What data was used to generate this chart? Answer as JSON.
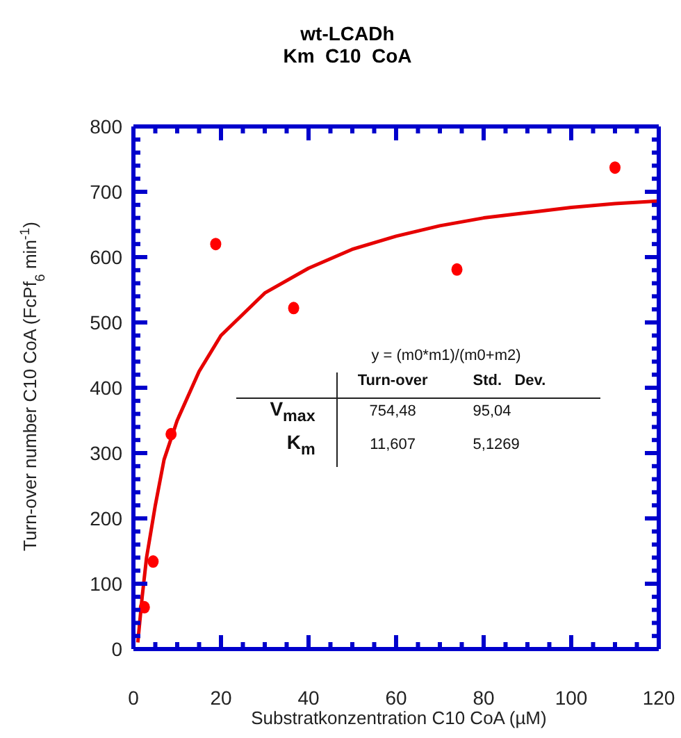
{
  "chart_data": {
    "type": "scatter",
    "title": "wt-LCADh",
    "subtitle": "Km  C10  CoA",
    "xlabel": "Substratkonzentration C10 CoA (µM)",
    "ylabel": "Turn-over number C10 CoA (FcPf$_{6}$  min$^{-1}$)",
    "xlim": [
      0,
      120
    ],
    "ylim": [
      0,
      800
    ],
    "xticks": [
      0,
      {
        "value": 5,
        "label": null
      },
      {
        "value": 10,
        "label": null
      },
      {
        "value": 15,
        "label": null
      },
      20,
      {
        "value": 25,
        "label": null
      },
      {
        "value": 30,
        "label": null
      },
      {
        "value": 35,
        "label": null
      },
      40,
      {
        "value": 45,
        "label": null
      },
      {
        "value": 50,
        "label": null
      },
      {
        "value": 55,
        "label": null
      },
      60,
      {
        "value": 65,
        "label": null
      },
      {
        "value": 70,
        "label": null
      },
      {
        "value": 75,
        "label": null
      },
      80,
      {
        "value": 85,
        "label": null
      },
      {
        "value": 90,
        "label": null
      },
      {
        "value": 95,
        "label": null
      },
      100,
      {
        "value": 105,
        "label": null
      },
      {
        "value": 110,
        "label": null
      },
      {
        "value": 115,
        "label": null
      },
      120
    ],
    "yticks": [
      0,
      {
        "value": 20,
        "label": null
      },
      {
        "value": 40,
        "label": null
      },
      {
        "value": 60,
        "label": null
      },
      {
        "value": 80,
        "label": null
      },
      100,
      {
        "value": 120,
        "label": null
      },
      {
        "value": 140,
        "label": null
      },
      {
        "value": 160,
        "label": null
      },
      {
        "value": 180,
        "label": null
      },
      200,
      {
        "value": 220,
        "label": null
      },
      {
        "value": 240,
        "label": null
      },
      {
        "value": 260,
        "label": null
      },
      {
        "value": 280,
        "label": null
      },
      300,
      {
        "value": 320,
        "label": null
      },
      {
        "value": 340,
        "label": null
      },
      {
        "value": 360,
        "label": null
      },
      {
        "value": 380,
        "label": null
      },
      400,
      {
        "value": 420,
        "label": null
      },
      {
        "value": 440,
        "label": null
      },
      {
        "value": 460,
        "label": null
      },
      {
        "value": 480,
        "label": null
      },
      500,
      {
        "value": 520,
        "label": null
      },
      {
        "value": 540,
        "label": null
      },
      {
        "value": 560,
        "label": null
      },
      {
        "value": 580,
        "label": null
      },
      600,
      {
        "value": 620,
        "label": null
      },
      {
        "value": 640,
        "label": null
      },
      {
        "value": 660,
        "label": null
      },
      {
        "value": 680,
        "label": null
      },
      700,
      {
        "value": 720,
        "label": null
      },
      {
        "value": 740,
        "label": null
      },
      {
        "value": 760,
        "label": null
      },
      {
        "value": 780,
        "label": null
      },
      800
    ],
    "series": [
      {
        "marker": "circle",
        "color": "#ff0000",
        "x": [
          2.5,
          4.5,
          8.6,
          18.8,
          36.6,
          73.9,
          110
        ],
        "values": [
          64,
          134,
          329,
          620,
          522,
          581,
          737
        ]
      },
      {
        "type": "line",
        "marker": "none",
        "line_style": "solid",
        "color": "#e60000",
        "x": [
          1,
          2,
          3,
          5,
          7,
          10,
          15,
          20,
          30,
          40,
          50,
          60,
          70,
          80,
          90,
          100,
          110,
          120
        ],
        "values": [
          10,
          80,
          140,
          220,
          290,
          350,
          425,
          480,
          545,
          583,
          612,
          632,
          648,
          660,
          668,
          676,
          682,
          686
        ]
      }
    ],
    "annotations": [
      "y = (m0*m1)/(m0+m2)",
      "Turn-over",
      "Std.   Dev.",
      "V$_{max}$",
      "754,48",
      "95,04",
      "K$_{m}$",
      "11,607",
      "5,1269"
    ]
  }
}
